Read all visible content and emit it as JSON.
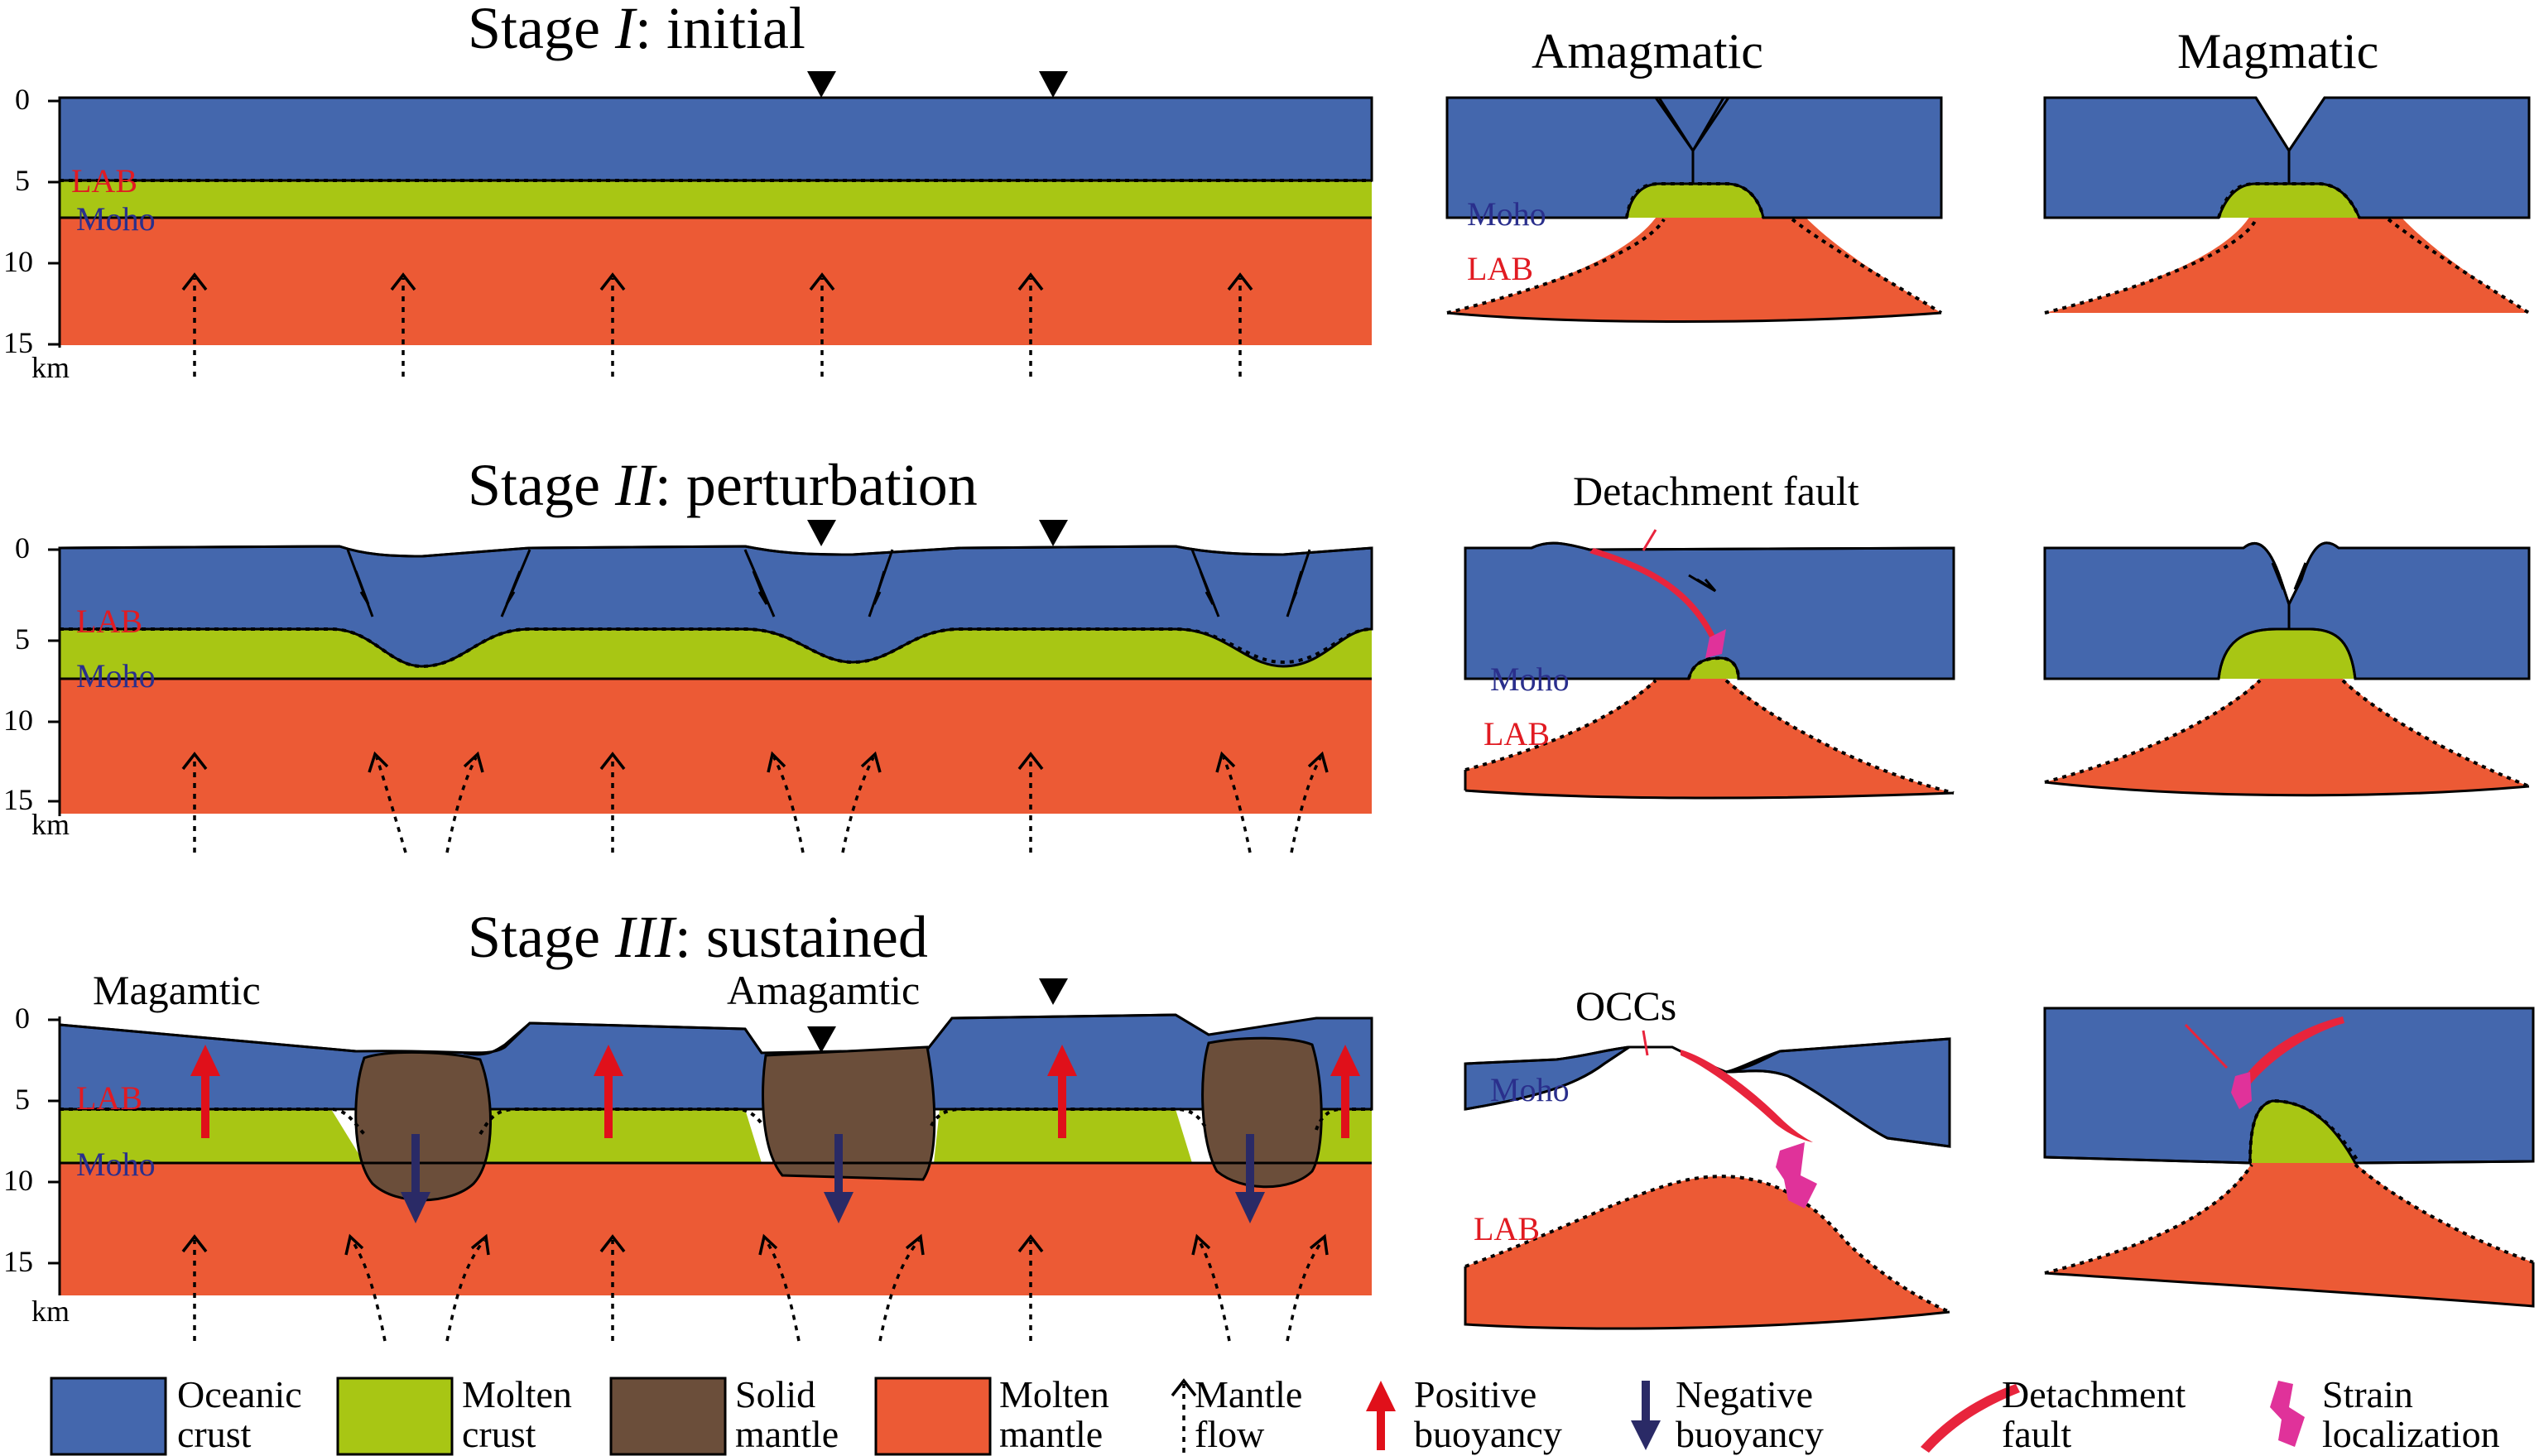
{
  "stages": [
    {
      "label_prefix": "Stage ",
      "numeral": "I",
      "label_suffix": ": initial"
    },
    {
      "label_prefix": "Stage ",
      "numeral": "II",
      "label_suffix": ": perturbation"
    },
    {
      "label_prefix": "Stage ",
      "numeral": "III",
      "label_suffix": ": sustained"
    }
  ],
  "axis": {
    "ticks": [
      "0",
      "5",
      "10",
      "15"
    ],
    "unit": "km"
  },
  "layer_labels": {
    "lab": "LAB",
    "moho": "Moho"
  },
  "column_headers": {
    "amagmatic": "Amagmatic",
    "magmatic": "Magmatic"
  },
  "stage3_labels": {
    "left": "Magamtic",
    "middle": "Amagamtic"
  },
  "annotations": {
    "detachment_fault": "Detachment fault",
    "occs": "OCCs"
  },
  "legend": [
    {
      "line1": "Oceanic",
      "line2": "crust",
      "icon": "oceanic-crust-swatch",
      "color": "#4467ad"
    },
    {
      "line1": "Molten",
      "line2": "crust",
      "icon": "molten-crust-swatch",
      "color": "#a8c614"
    },
    {
      "line1": "Solid",
      "line2": "mantle",
      "icon": "solid-mantle-swatch",
      "color": "#6b4e3a"
    },
    {
      "line1": "Molten",
      "line2": "mantle",
      "icon": "molten-mantle-swatch",
      "color": "#ec5a35"
    },
    {
      "line1": "Mantle",
      "line2": "flow",
      "icon": "mantle-flow-arrow-icon",
      "color": "#000000"
    },
    {
      "line1": "Positive",
      "line2": "buoyancy",
      "icon": "positive-buoyancy-arrow-icon",
      "color": "#e0101a"
    },
    {
      "line1": "Negative",
      "line2": "buoyancy",
      "icon": "negative-buoyancy-arrow-icon",
      "color": "#2a2a66"
    },
    {
      "line1": "Detachment",
      "line2": "fault",
      "icon": "detachment-fault-icon",
      "color": "#e8243c"
    },
    {
      "line1": "Strain",
      "line2": "localization",
      "icon": "strain-localization-icon",
      "color": "#e0329a"
    }
  ]
}
